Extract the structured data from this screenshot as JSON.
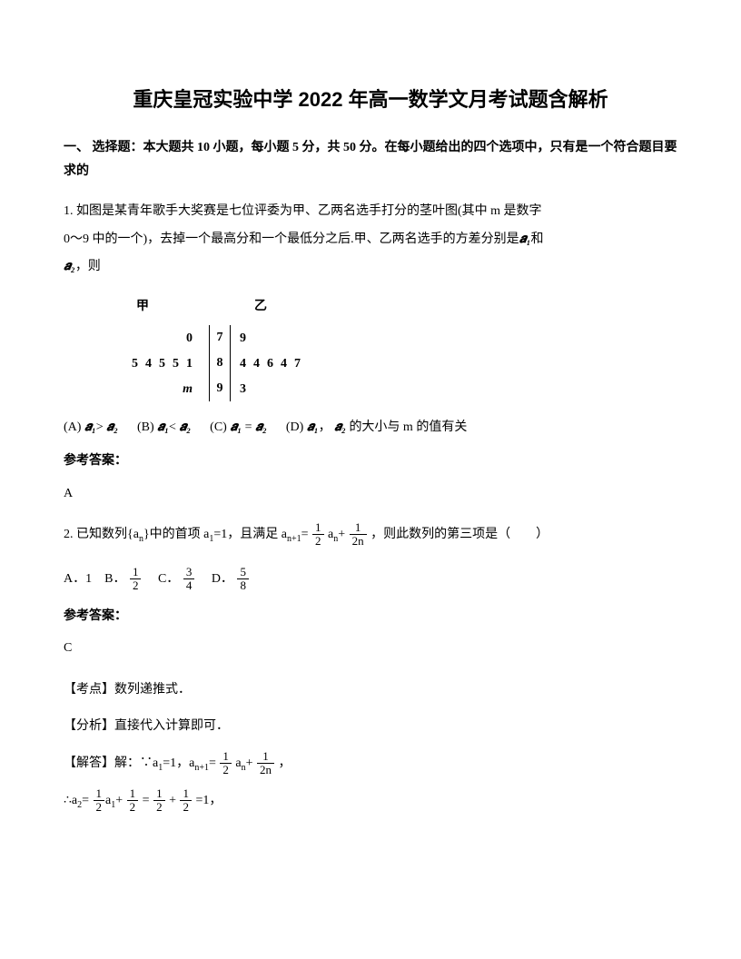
{
  "title": "重庆皇冠实验中学 2022 年高一数学文月考试题含解析",
  "section1": {
    "header": "一、 选择题：本大题共 10 小题，每小题 5 分，共 50 分。在每小题给出的四个选项中，只有是一个符合题目要求的"
  },
  "q1": {
    "text1": "1. 如图是某青年歌手大奖赛是七位评委为甲、乙两名选手打分的茎叶图(其中 m 是数字",
    "text2": "0～9 中的一个)，去掉一个最高分和一个最低分之后.甲、乙两名选手的方差分别是",
    "text3": "和",
    "text4": "，则",
    "stemleaf": {
      "header_jia": "甲",
      "header_yi": "乙",
      "rows": [
        {
          "left": "0",
          "center": "7",
          "right": "9"
        },
        {
          "left": "54551",
          "center": "8",
          "right": "44647"
        },
        {
          "left": "m",
          "center": "9",
          "right": "3"
        }
      ]
    },
    "options": {
      "a": "(A)",
      "a_text": ">",
      "b": "(B)",
      "b_text": "<",
      "c": "(C)",
      "c_text": "=",
      "d": "(D)",
      "d_text": "，",
      "d_text2": "的大小与 m 的值有关"
    },
    "answer_label": "参考答案：",
    "answer": "A"
  },
  "q2": {
    "text1": "2. 已知数列{a",
    "text1b": "}中的首项 a",
    "text1c": "=1，且满足 a",
    "text1d": "=",
    "text1e": "a",
    "text1f": "+",
    "text1g": "，则此数列的第三项是（　　）",
    "options": {
      "a": "A．1",
      "b": "B．",
      "c": "C．",
      "d": "D．"
    },
    "answer_label": "参考答案：",
    "answer": "C",
    "kaodian_label": "【考点】",
    "kaodian": "数列递推式．",
    "fenxi_label": "【分析】",
    "fenxi": "直接代入计算即可．",
    "jieda_label": "【解答】",
    "jieda1": "解：∵a",
    "jieda1b": "=1，a",
    "jieda1c": "=",
    "jieda1d": "a",
    "jieda1e": "+",
    "jieda1f": "，",
    "jieda2a": "∴a",
    "jieda2b": "=",
    "jieda2c": "=",
    "jieda2d": "+",
    "jieda2e": "=1，"
  },
  "fractions": {
    "half_num": "1",
    "half_den": "2",
    "f2n_num": "1",
    "f2n_den": "2n",
    "f34_num": "3",
    "f34_den": "4",
    "f58_num": "5",
    "f58_den": "8"
  },
  "math": {
    "a1_sym": "𝒂₁",
    "a2_sym": "𝒂₂"
  }
}
